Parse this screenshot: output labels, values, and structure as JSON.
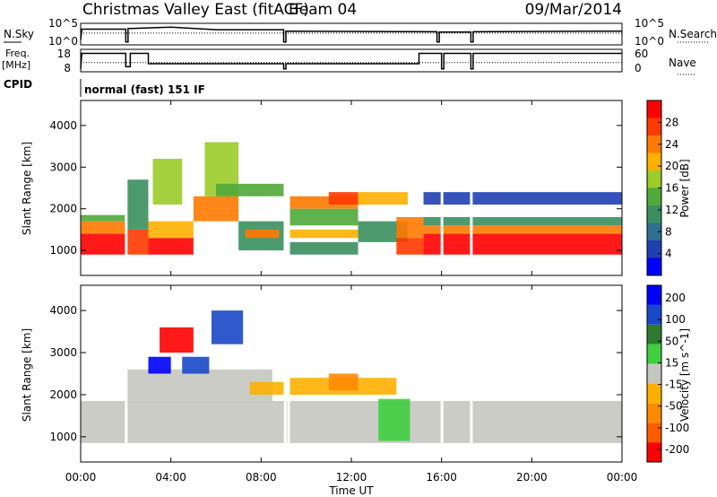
{
  "header": {
    "title": "Christmas Valley East (fitACF)",
    "beam": "Beam 04",
    "date": "09/Mar/2014"
  },
  "strip_nsky": {
    "left_label": "N.Sky",
    "left_ticks": [
      "10^5",
      "10^0"
    ],
    "right_label": "N.Search",
    "right_ticks": [
      "10^5",
      "10^0"
    ]
  },
  "strip_freq": {
    "left_label_line1": "Freq.",
    "left_label_line2": "[MHz]",
    "left_ticks": [
      "18",
      "8"
    ],
    "right_label": "Nave",
    "right_ticks": [
      "60",
      "0"
    ],
    "cpid_label": "CPID",
    "cpid_value": "normal (fast) 151 IF"
  },
  "colors": {
    "power_scale": [
      "#0000ff",
      "#1f40b0",
      "#2f6f8f",
      "#3b8f5f",
      "#50a93a",
      "#9bcc2a",
      "#ffb000",
      "#ff7a00",
      "#ff3a00",
      "#ff0000"
    ],
    "velocity_scale": [
      "#0000ff",
      "#1a47c8",
      "#2e7a2e",
      "#3fcf3f",
      "#c6c6c0",
      "#ffb000",
      "#ff8a00",
      "#ff5a00",
      "#ff0000"
    ]
  },
  "chart_data": [
    {
      "type": "heatmap",
      "title": "",
      "ylabel": "Slant Range [km]",
      "yticks": [
        "1000",
        "2000",
        "3000",
        "4000"
      ],
      "ylim": [
        400,
        4600
      ],
      "xlim": [
        "00:00",
        "24:00"
      ],
      "colorbar": {
        "label": "Power [dB]",
        "ticks": [
          "4",
          "8",
          "12",
          "16",
          "20",
          "24",
          "28"
        ],
        "range": [
          0,
          32
        ]
      },
      "bands": [
        {
          "t0": 0.0,
          "t1": 2.0,
          "r0": 900,
          "r1": 1400,
          "color": "#ff0000"
        },
        {
          "t0": 0.0,
          "t1": 2.0,
          "r0": 1400,
          "r1": 1700,
          "color": "#ff7a00"
        },
        {
          "t0": 0.0,
          "t1": 2.0,
          "r0": 1700,
          "r1": 1850,
          "color": "#50a93a"
        },
        {
          "t0": 2.0,
          "t1": 3.0,
          "r0": 900,
          "r1": 1500,
          "color": "#ff3a00"
        },
        {
          "t0": 2.0,
          "t1": 3.0,
          "r0": 1500,
          "r1": 2700,
          "color": "#3b8f5f"
        },
        {
          "t0": 3.0,
          "t1": 5.0,
          "r0": 900,
          "r1": 1300,
          "color": "#ff0000"
        },
        {
          "t0": 3.0,
          "t1": 5.0,
          "r0": 1300,
          "r1": 1700,
          "color": "#ffb000"
        },
        {
          "t0": 3.2,
          "t1": 4.5,
          "r0": 2100,
          "r1": 3200,
          "color": "#9bcc2a"
        },
        {
          "t0": 5.0,
          "t1": 7.0,
          "r0": 1700,
          "r1": 2300,
          "color": "#ff7a00"
        },
        {
          "t0": 5.5,
          "t1": 7.0,
          "r0": 2300,
          "r1": 3600,
          "color": "#9bcc2a"
        },
        {
          "t0": 6.0,
          "t1": 9.0,
          "r0": 2300,
          "r1": 2600,
          "color": "#50a93a"
        },
        {
          "t0": 7.0,
          "t1": 9.0,
          "r0": 1000,
          "r1": 1700,
          "color": "#3b8f5f"
        },
        {
          "t0": 7.3,
          "t1": 8.8,
          "r0": 1300,
          "r1": 1500,
          "color": "#ff7a00"
        },
        {
          "t0": 9.2,
          "t1": 12.3,
          "r0": 2000,
          "r1": 2300,
          "color": "#ff7a00"
        },
        {
          "t0": 9.2,
          "t1": 12.3,
          "r0": 1600,
          "r1": 2000,
          "color": "#50a93a"
        },
        {
          "t0": 9.2,
          "t1": 12.3,
          "r0": 1300,
          "r1": 1500,
          "color": "#ffb000"
        },
        {
          "t0": 9.2,
          "t1": 12.3,
          "r0": 900,
          "r1": 1200,
          "color": "#3b8f5f"
        },
        {
          "t0": 11.0,
          "t1": 12.3,
          "r0": 2100,
          "r1": 2400,
          "color": "#ff3a00"
        },
        {
          "t0": 12.3,
          "t1": 14.5,
          "r0": 2100,
          "r1": 2400,
          "color": "#ffb000"
        },
        {
          "t0": 12.3,
          "t1": 14.5,
          "r0": 1200,
          "r1": 1700,
          "color": "#3b8f5f"
        },
        {
          "t0": 14.0,
          "t1": 15.2,
          "r0": 900,
          "r1": 1300,
          "color": "#ff3a00"
        },
        {
          "t0": 14.0,
          "t1": 15.2,
          "r0": 1300,
          "r1": 1800,
          "color": "#ff7a00"
        },
        {
          "t0": 15.2,
          "t1": 24.0,
          "r0": 900,
          "r1": 1400,
          "color": "#ff0000"
        },
        {
          "t0": 15.2,
          "t1": 24.0,
          "r0": 1400,
          "r1": 1600,
          "color": "#ff7a00"
        },
        {
          "t0": 15.2,
          "t1": 24.0,
          "r0": 1600,
          "r1": 1800,
          "color": "#3b8f5f"
        },
        {
          "t0": 15.2,
          "t1": 24.0,
          "r0": 2100,
          "r1": 2400,
          "color": "#1f40b0"
        }
      ]
    },
    {
      "type": "heatmap",
      "title": "",
      "ylabel": "Slant Range [km]",
      "yticks": [
        "1000",
        "2000",
        "3000",
        "4000"
      ],
      "ylim": [
        400,
        4600
      ],
      "xlim": [
        "00:00",
        "24:00"
      ],
      "xticks": [
        "00:00",
        "04:00",
        "08:00",
        "12:00",
        "16:00",
        "20:00",
        "00:00"
      ],
      "xlabel": "Time UT",
      "colorbar": {
        "label": "Velocity [m s^-1]",
        "ticks": [
          "200",
          "100",
          "50",
          "15",
          "-15",
          "-50",
          "-100",
          "-200"
        ],
        "range": [
          -250,
          250
        ]
      },
      "bands": [
        {
          "t0": 0.0,
          "t1": 24.0,
          "r0": 850,
          "r1": 1850,
          "color": "#c6c6c0"
        },
        {
          "t0": 2.0,
          "t1": 8.5,
          "r0": 1800,
          "r1": 2600,
          "color": "#c6c6c0"
        },
        {
          "t0": 3.0,
          "t1": 4.0,
          "r0": 2500,
          "r1": 2900,
          "color": "#0000ff"
        },
        {
          "t0": 4.5,
          "t1": 5.7,
          "r0": 2500,
          "r1": 2900,
          "color": "#1a47c8"
        },
        {
          "t0": 3.5,
          "t1": 5.0,
          "r0": 3000,
          "r1": 3600,
          "color": "#ff0000"
        },
        {
          "t0": 5.8,
          "t1": 7.2,
          "r0": 3200,
          "r1": 4000,
          "color": "#1a47c8"
        },
        {
          "t0": 7.5,
          "t1": 9.0,
          "r0": 2000,
          "r1": 2300,
          "color": "#ffb000"
        },
        {
          "t0": 9.2,
          "t1": 14.0,
          "r0": 2000,
          "r1": 2400,
          "color": "#ffb000"
        },
        {
          "t0": 11.0,
          "t1": 12.3,
          "r0": 2100,
          "r1": 2500,
          "color": "#ff8a00"
        },
        {
          "t0": 13.2,
          "t1": 14.6,
          "r0": 900,
          "r1": 1900,
          "color": "#3fcf3f"
        }
      ]
    }
  ],
  "xaxis": {
    "xticks": [
      "00:00",
      "04:00",
      "08:00",
      "12:00",
      "16:00",
      "20:00",
      "00:00"
    ],
    "xlabel": "Time UT"
  }
}
